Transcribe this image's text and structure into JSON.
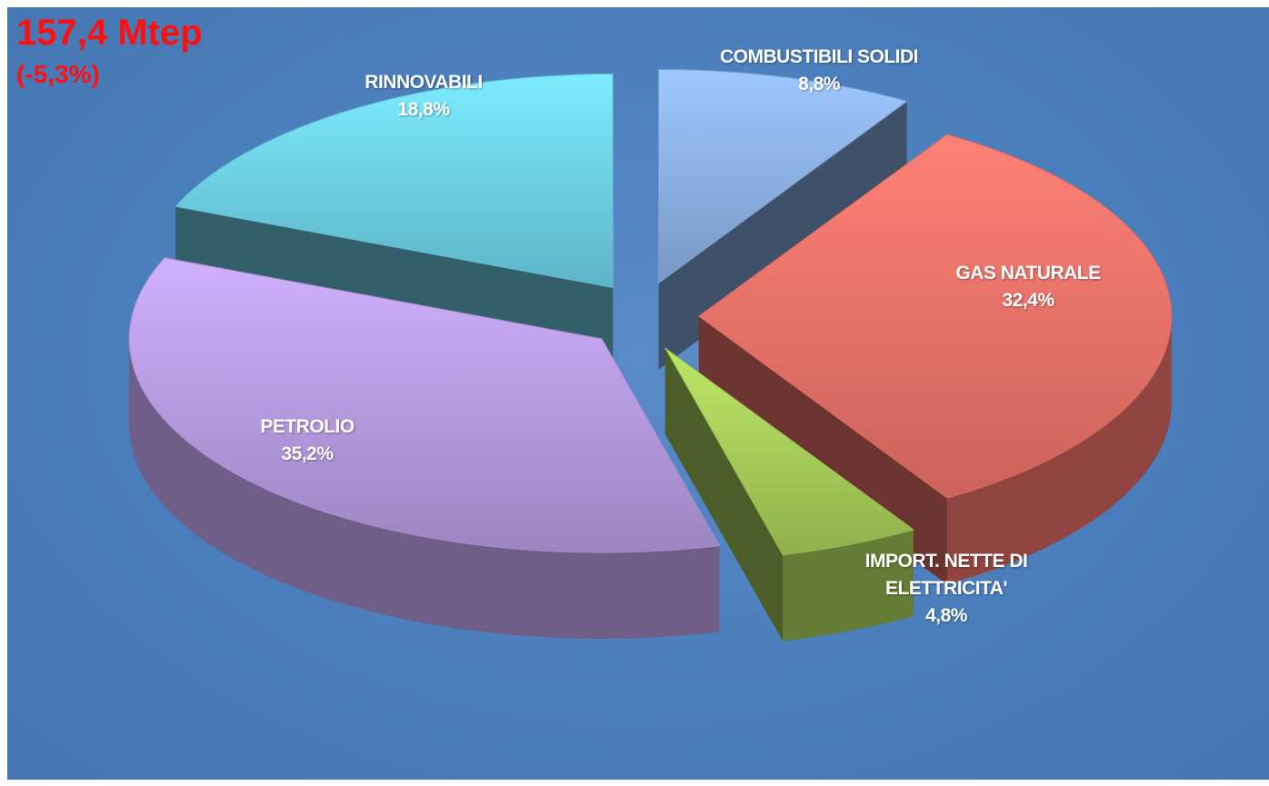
{
  "chart_data": {
    "type": "pie",
    "title": "157,4 Mtep",
    "subtitle": "(-5,3%)",
    "categories": [
      "COMBUSTIBILI SOLIDI",
      "GAS NATURALE",
      "IMPORT. NETTE DI ELETTRICITA'",
      "PETROLIO",
      "RINNOVABILI"
    ],
    "values": [
      8.8,
      32.4,
      4.8,
      35.2,
      18.8
    ],
    "value_labels": [
      "8,8%",
      "32,4%",
      "4,8%",
      "35,2%",
      "18,8%"
    ],
    "colors": [
      "#8db3e8",
      "#f0736a",
      "#a9cf5a",
      "#b99de3",
      "#6fd3ea"
    ]
  }
}
